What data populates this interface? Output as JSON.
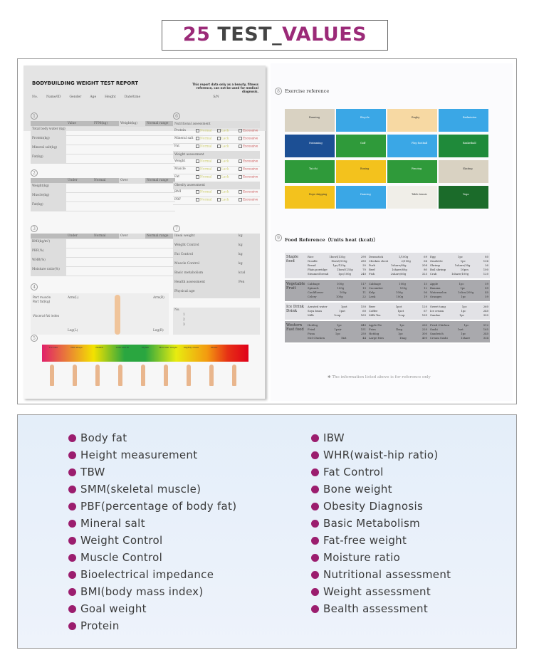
{
  "header": {
    "title_num": "25",
    "title_mid": " TEST",
    "title_sep": "_",
    "title_end": "VALUES"
  },
  "report": {
    "title": "BODYBUILDING WEIGHT TEST REPORT",
    "note": "This report data only as a beauty, fitness reference, can not be used for medical diagnosis.",
    "fields": [
      "No.",
      "Name/ID",
      "Gender",
      "Age",
      "Height",
      "Date/time",
      "S/N"
    ],
    "s1": {
      "cols": [
        "",
        "Value",
        "FFM(kg)",
        "Weight(kg)",
        "Normal range"
      ],
      "rows": [
        "Total body water (kg)",
        "Protein(kg)",
        "Mineral salt(kg)",
        "Fat(kg)"
      ]
    },
    "s2": {
      "cols": [
        "",
        "Under",
        "Normal",
        "Over",
        "Normal range"
      ],
      "rows": [
        "Weight(kg)",
        "Muscle(kg)",
        "Fat(kg)"
      ]
    },
    "s3": {
      "cols": [
        "",
        "Under",
        "Normal",
        "Over",
        "Normal range"
      ],
      "rows": [
        "BMI(kg/m²)",
        "PBF(%)",
        "WHR(%)",
        "Moisture ratio(%)"
      ]
    },
    "s4": {
      "labels": [
        "Part muscle",
        "Part fat(kg)",
        "Visceral fat index"
      ],
      "arms": [
        "Arm(L)",
        "Arm(R)",
        "Leg(L)",
        "Leg(R)"
      ]
    },
    "s5": {
      "levels": [
        "Too thin",
        "Thin shape",
        "Health",
        "Lean and fit",
        "Stylish",
        "Muscular weight",
        "Slightly obese",
        "Obese",
        ""
      ]
    },
    "s6": {
      "title": "Nutritional assessment",
      "rows": [
        "Protein",
        "Mineral salt",
        "Fat"
      ],
      "opts": [
        "Normal",
        "Lack",
        "Excessive"
      ],
      "weight_title": "Weight assessment",
      "wrows": [
        "Weight",
        "Muscle",
        "Fat"
      ],
      "obesity_title": "Obesity assessment",
      "orows": [
        "BMI",
        "PBF"
      ]
    },
    "s7": {
      "rows": [
        [
          "Ideal weight",
          "kg"
        ],
        [
          "Weight Control",
          "kg"
        ],
        [
          "Fat Control",
          "kg"
        ],
        [
          "Muscle Control",
          "kg"
        ],
        [
          "Basic metabolism",
          "kcal"
        ],
        [
          "Health assessment",
          "Pen"
        ],
        [
          "Physical age",
          ""
        ]
      ],
      "no_label": "No.",
      "nums": [
        "1",
        "2",
        "3"
      ]
    },
    "s8": {
      "title": "Exercise reference",
      "tiles": [
        {
          "label": "Running",
          "color": "#d9d2c2"
        },
        {
          "label": "Bicycle",
          "color": "#3aa7e6"
        },
        {
          "label": "Rugby",
          "color": "#f7d9a3"
        },
        {
          "label": "Badminton",
          "color": "#3aa7e6"
        },
        {
          "label": "Swimming",
          "color": "#1c4f94"
        },
        {
          "label": "Golf",
          "color": "#2f9a3a"
        },
        {
          "label": "Play football",
          "color": "#3aa7e6"
        },
        {
          "label": "Basketball",
          "color": "#1f8a3a"
        },
        {
          "label": "Tai chi",
          "color": "#2f9a3a"
        },
        {
          "label": "Boxing",
          "color": "#f3c21d"
        },
        {
          "label": "Fencing",
          "color": "#2f9a3a"
        },
        {
          "label": "Skating",
          "color": "#d9d2c2"
        },
        {
          "label": "Rope skipping",
          "color": "#f3c21d"
        },
        {
          "label": "Dancing",
          "color": "#3aa7e6"
        },
        {
          "label": "Table tennis",
          "color": "#f0eee8"
        },
        {
          "label": "Yoga",
          "color": "#1b6b2a"
        }
      ]
    },
    "s9": {
      "title": "Food Reference（Units heat (kcal)）",
      "footnote": "The information listed above is for reference only",
      "groups": [
        {
          "cat": "Staple food",
          "cols": [
            [
              [
                "Rice",
                "1bowl/135g",
                "290"
              ],
              [
                "Noodle",
                "1bowl/135g",
                "280"
              ],
              [
                "Bread",
                "1pc/120g",
                "20"
              ],
              [
                "Plain porridge",
                "1bowl/135g",
                "70"
              ],
              [
                "Steamed bread",
                "1pc/100g",
                "240"
              ]
            ],
            [
              [
                "Drumstick",
                "1/100g",
                "69"
              ],
              [
                "Chicken chest",
                "2/100g",
                "66"
              ],
              [
                "Pork",
                "1share/60g",
                "208"
              ],
              [
                "Beef",
                "1share/60g",
                "80"
              ],
              [
                "Fish",
                "2share/60g",
                "325"
              ]
            ],
            [
              [
                "Egg",
                "1pc",
                "80"
              ],
              [
                "Omelette",
                "1pc",
                "136"
              ],
              [
                "Shrimp",
                "1share/30g",
                "26"
              ],
              [
                "Boil shrimp",
                "10pcs",
                "100"
              ],
              [
                "Crab",
                "1share/100g",
                "120"
              ]
            ]
          ]
        },
        {
          "cat": "Vegetable Fruit",
          "cols": [
            [
              [
                "Cabbage",
                "100g",
                "117"
              ],
              [
                "Spinach",
                "100g",
                "10"
              ],
              [
                "Cauliflower",
                "100g",
                "11"
              ],
              [
                "Celery",
                "100g",
                "22"
              ]
            ],
            [
              [
                "Cabbage",
                "100g",
                "15"
              ],
              [
                "Cucumber",
                "100g",
                "12"
              ],
              [
                "Kelp",
                "100g",
                "56"
              ],
              [
                "Leek",
                "100g",
                "19"
              ]
            ],
            [
              [
                "Apple",
                "1pc",
                "59"
              ],
              [
                "Banana",
                "1pc",
                "89"
              ],
              [
                "Watermelon",
                "1slice/200g",
                "40"
              ],
              [
                "Oranges",
                "1pc",
                "59"
              ]
            ]
          ]
        },
        {
          "cat": "Ice Drink Drink",
          "cols": [
            [
              [
                "Aerated water",
                "1pot",
                "150"
              ],
              [
                "Soya bean",
                "1pot",
                "60"
              ],
              [
                "Milk",
                "1cup",
                "163"
              ]
            ],
            [
              [
                "Beer",
                "1pot",
                "120"
              ],
              [
                "Coffee",
                "1pot",
                "67"
              ],
              [
                "Milk Tea",
                "1cup",
                "169"
              ]
            ],
            [
              [
                "Sweet tang",
                "1pc",
                "260"
              ],
              [
                "Ice cream",
                "1pc",
                "240"
              ],
              [
                "Sundae",
                "1pc",
                "300"
              ]
            ]
          ]
        },
        {
          "cat": "Western Fast food",
          "cols": [
            [
              [
                "Hotdog",
                "1pc",
                "440"
              ],
              [
                "Fried",
                "1pair",
                "151"
              ],
              [
                "Pizza",
                "1pc",
                "250"
              ],
              [
                "Mcl Chicken",
                "1kit",
                "44"
              ]
            ],
            [
              [
                "Apple Pie",
                "1pc",
                "260"
              ],
              [
                "Fries",
                "1bag",
                "220"
              ],
              [
                "Hotdog",
                "1pc",
                "300"
              ],
              [
                "Large fries",
                "1bag",
                "400"
              ]
            ],
            [
              [
                "Fried Chicken",
                "1pc",
                "512"
              ],
              [
                "Sushi",
                "1set",
                "165"
              ],
              [
                "Sandwich",
                "1pc",
                "240"
              ],
              [
                "Cream Sushi",
                "1share",
                "334"
              ]
            ]
          ]
        }
      ]
    }
  },
  "features": {
    "left": [
      "Body fat",
      "Height measurement",
      "TBW",
      "SMM(skeletal muscle)",
      "PBF(percentage of body fat)",
      "Mineral salt",
      "Weight Control",
      "Muscle Control",
      "Bioelectrical impedance",
      "BMI(body mass index)",
      "Goal weight",
      "Protein"
    ],
    "right": [
      "IBW",
      "WHR(waist-hip ratio)",
      "Fat Control",
      "Bone weight",
      "Obesity Diagnosis",
      "Basic Metabolism",
      "Fat-free weight",
      "Moisture ratio",
      "Nutritional assessment",
      "Weight assessment",
      "Bealth assessment"
    ]
  },
  "colors": {
    "accent": "#9b2a78",
    "bullet": "#9b1d6e"
  }
}
